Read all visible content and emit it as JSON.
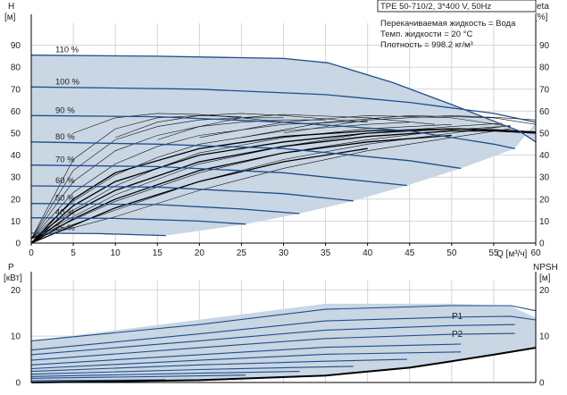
{
  "chart_data": [
    {
      "type": "line",
      "title": "TPE 50-710/2, 3*400 V, 50Hz",
      "info_lines": [
        "Перекачиваемая жидкость = Вода",
        "Темп. жидкости = 20 °C",
        "Плотность = 998.2 кг/м³"
      ],
      "ylabel_left": [
        "H",
        "[м]"
      ],
      "ylabel_right": [
        "eta",
        "[%]"
      ],
      "xlabel": "Q [м³/ч]",
      "xlim": [
        0,
        60
      ],
      "ylim": [
        0,
        100
      ],
      "x_ticks": [
        "0",
        "5",
        "10",
        "15",
        "20",
        "25",
        "30",
        "35",
        "40",
        "45",
        "50",
        "55",
        "60"
      ],
      "y_ticks": [
        "0",
        "10",
        "20",
        "30",
        "40",
        "50",
        "60",
        "70",
        "80",
        "90"
      ],
      "grid": true,
      "envelope_fill": "#c9d6e3",
      "curve_color": "#1f4e8c",
      "speed_curves": [
        {
          "label": "110 %",
          "x": [
            0,
            15,
            30,
            35.3,
            43,
            50,
            54,
            56,
            58,
            60
          ],
          "y": [
            85.5,
            85,
            84,
            82,
            73,
            63,
            57,
            54,
            51,
            46
          ]
        },
        {
          "label": "100 %",
          "x": [
            0,
            20,
            35,
            45,
            55,
            60
          ],
          "y": [
            71,
            70,
            67.5,
            64,
            59,
            55
          ]
        },
        {
          "label": "90 %",
          "x": [
            0,
            15,
            30,
            45,
            55,
            57.5
          ],
          "y": [
            58,
            57.5,
            55,
            51,
            45,
            43
          ]
        },
        {
          "label": "80 %",
          "x": [
            0,
            15,
            30,
            45,
            51.1
          ],
          "y": [
            46,
            45,
            43,
            37.5,
            34
          ]
        },
        {
          "label": "70 %",
          "x": [
            0,
            15,
            30,
            44.7
          ],
          "y": [
            35.5,
            34.8,
            32,
            26.2
          ]
        },
        {
          "label": "60 %",
          "x": [
            0,
            15,
            30,
            38.3
          ],
          "y": [
            26,
            25.5,
            22.5,
            19.2
          ]
        },
        {
          "label": "50 %",
          "x": [
            0,
            15,
            25,
            31.9
          ],
          "y": [
            18,
            17.5,
            15.5,
            13.4
          ]
        },
        {
          "label": "40 %",
          "x": [
            0,
            10,
            20,
            25.5
          ],
          "y": [
            11.5,
            11.2,
            10,
            8.6
          ]
        },
        {
          "label": "25 %",
          "x": [
            0,
            8,
            16
          ],
          "y": [
            4.5,
            4.3,
            3.4
          ]
        }
      ],
      "efficiency_curves_bold": [
        {
          "x": [
            0,
            5,
            10,
            20,
            30,
            40,
            50,
            55,
            60
          ],
          "y": [
            0,
            20,
            32,
            43,
            48.5,
            51,
            52,
            51.5,
            50.5
          ]
        },
        {
          "x": [
            0,
            5,
            10,
            20,
            30,
            40,
            50,
            55,
            60
          ],
          "y": [
            0,
            17,
            28,
            40,
            46,
            50,
            52,
            51.5,
            50.5
          ]
        },
        {
          "x": [
            0,
            5,
            10,
            20,
            30,
            40,
            50,
            55,
            60
          ],
          "y": [
            0,
            14,
            24,
            37,
            44,
            48.5,
            51,
            51,
            50
          ]
        },
        {
          "x": [
            0,
            5,
            10,
            20,
            30,
            40,
            50
          ],
          "y": [
            0,
            11,
            20,
            33,
            41,
            46,
            49
          ]
        },
        {
          "x": [
            0,
            5,
            10,
            20,
            30,
            40
          ],
          "y": [
            0,
            8,
            16,
            28,
            37,
            43
          ]
        }
      ],
      "efficiency_curves_thin": [
        {
          "x": [
            0,
            5,
            10,
            15,
            20,
            25
          ],
          "y": [
            2,
            38,
            52,
            57,
            58,
            57.5
          ]
        },
        {
          "x": [
            0,
            5,
            10,
            15,
            20,
            25,
            30
          ],
          "y": [
            2,
            33,
            47,
            53,
            56,
            57,
            57
          ]
        },
        {
          "x": [
            0,
            5,
            10,
            15,
            20,
            25,
            30,
            35
          ],
          "y": [
            2,
            28,
            42,
            49,
            53,
            55,
            56,
            56
          ]
        },
        {
          "x": [
            0,
            5,
            10,
            15,
            20,
            30,
            40
          ],
          "y": [
            2,
            23,
            36,
            44,
            49,
            54,
            55.5
          ]
        },
        {
          "x": [
            0,
            5,
            10,
            15,
            20,
            30,
            40,
            45
          ],
          "y": [
            2,
            19,
            31,
            39,
            45,
            51,
            54,
            55
          ]
        },
        {
          "x": [
            0,
            5,
            10,
            15,
            20,
            30,
            40,
            50
          ],
          "y": [
            2,
            15,
            26,
            34,
            41,
            48,
            52,
            54
          ]
        },
        {
          "x": [
            0,
            5,
            10,
            20,
            30,
            40,
            50,
            56
          ],
          "y": [
            2,
            12,
            22,
            36,
            44,
            50,
            53,
            54.5
          ]
        },
        {
          "x": [
            0,
            10,
            20,
            30,
            40,
            50,
            56
          ],
          "y": [
            2,
            19,
            32,
            41,
            47,
            51.5,
            53
          ]
        },
        {
          "x": [
            0,
            10,
            20,
            30,
            40,
            50,
            57
          ],
          "y": [
            2,
            15,
            28,
            38,
            45,
            50,
            53.5
          ]
        },
        {
          "x": [
            0,
            10,
            20,
            30,
            40,
            50,
            57
          ],
          "y": [
            2,
            12,
            24,
            34,
            42,
            48,
            52
          ]
        },
        {
          "x": [
            5,
            10,
            15,
            20,
            25,
            30
          ],
          "y": [
            50,
            57,
            59,
            58.5,
            57,
            55
          ]
        },
        {
          "x": [
            10,
            15,
            20,
            25,
            30,
            40
          ],
          "y": [
            48,
            55,
            58,
            59,
            58,
            55
          ]
        },
        {
          "x": [
            15,
            20,
            25,
            30,
            40,
            48
          ],
          "y": [
            47,
            53,
            57,
            58.5,
            57,
            54
          ]
        },
        {
          "x": [
            20,
            30,
            40,
            50,
            57
          ],
          "y": [
            48,
            55,
            58,
            57,
            53
          ]
        },
        {
          "x": [
            25,
            35,
            45,
            55,
            60
          ],
          "y": [
            48,
            55,
            58,
            57,
            54
          ]
        },
        {
          "x": [
            30,
            40,
            50,
            56,
            60
          ],
          "y": [
            50,
            56,
            58,
            57,
            56
          ]
        }
      ]
    },
    {
      "type": "line",
      "ylabel_left": [
        "P",
        "[кВт]"
      ],
      "ylabel_right": [
        "NPSH",
        "[м]"
      ],
      "xlim": [
        0,
        60
      ],
      "ylim": [
        0,
        22
      ],
      "y_ticks": [
        "0",
        "10",
        "20"
      ],
      "grid": true,
      "series_labels": [
        "P1",
        "P2"
      ],
      "power_envelope": {
        "x": [
          0,
          35,
          50,
          57,
          60
        ],
        "y": [
          9,
          17,
          17,
          16.5,
          14
        ]
      },
      "power_curves": [
        {
          "label": "P1",
          "x": [
            0,
            20,
            35,
            50,
            57,
            60
          ],
          "y": [
            9,
            12.5,
            15.8,
            16.6,
            16.6,
            15.5
          ]
        },
        {
          "label": "P2",
          "x": [
            0,
            20,
            35,
            50,
            57,
            60
          ],
          "y": [
            7,
            10.5,
            13.3,
            14.1,
            14.3,
            13.5
          ]
        },
        {
          "x": [
            0,
            20,
            35,
            50,
            57.5
          ],
          "y": [
            6,
            9,
            11.3,
            12.3,
            12.5
          ]
        },
        {
          "x": [
            0,
            20,
            35,
            50,
            57.5
          ],
          "y": [
            4.8,
            7.5,
            9.5,
            10.4,
            10.6
          ]
        },
        {
          "x": [
            0,
            20,
            35,
            51.1
          ],
          "y": [
            3.8,
            6,
            7.6,
            8.3
          ]
        },
        {
          "x": [
            0,
            20,
            35,
            51.1
          ],
          "y": [
            3,
            4.8,
            6.1,
            6.6
          ]
        },
        {
          "x": [
            0,
            20,
            35,
            44.7
          ],
          "y": [
            2.4,
            3.8,
            4.6,
            5
          ]
        },
        {
          "x": [
            0,
            20,
            38.3
          ],
          "y": [
            1.8,
            2.8,
            3.5
          ]
        },
        {
          "x": [
            0,
            20,
            31.9
          ],
          "y": [
            1.3,
            2,
            2.4
          ]
        },
        {
          "x": [
            0,
            15,
            25.5
          ],
          "y": [
            0.9,
            1.3,
            1.6
          ]
        },
        {
          "x": [
            0,
            10,
            16
          ],
          "y": [
            0.4,
            0.5,
            0.6
          ]
        }
      ],
      "npsh_curve": {
        "x": [
          0,
          20,
          35,
          45,
          50,
          55,
          60
        ],
        "y": [
          0,
          0.5,
          1.5,
          3.2,
          4.6,
          6,
          7.5
        ]
      }
    }
  ]
}
